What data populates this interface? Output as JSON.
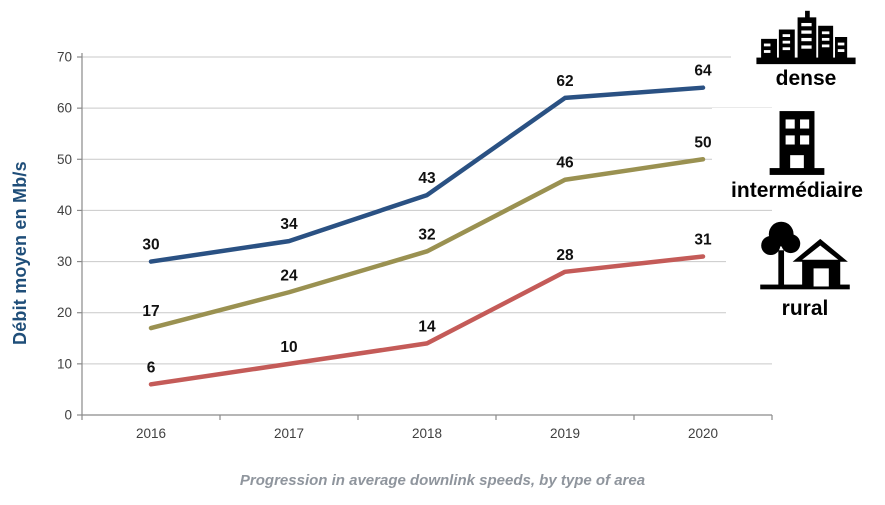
{
  "page": {
    "caption": "Progression in average downlink speeds, by type of area"
  },
  "chart_data": {
    "type": "line",
    "title": "",
    "xlabel": "",
    "ylabel": "Débit moyen en Mb/s",
    "categories": [
      "2016",
      "2017",
      "2018",
      "2019",
      "2020"
    ],
    "yticks": [
      0,
      10,
      20,
      30,
      40,
      50,
      60,
      70
    ],
    "ylim": [
      0,
      70
    ],
    "grid": "horizontal",
    "legend_position": "right",
    "series": [
      {
        "name": "dense",
        "icon": "city-icon",
        "color": "#2A5183",
        "values": [
          30,
          34,
          43,
          62,
          64
        ]
      },
      {
        "name": "intermédiaire",
        "icon": "building-icon",
        "color": "#9A9151",
        "values": [
          17,
          24,
          32,
          46,
          50
        ]
      },
      {
        "name": "rural",
        "icon": "house-icon",
        "color": "#C45B58",
        "values": [
          6,
          10,
          14,
          28,
          31
        ]
      }
    ],
    "style": {
      "grid_color": "#C9C9C9",
      "axis_color": "#8A8A8A",
      "tick_label_color": "#404040",
      "data_label_color": "#111111",
      "ylabel_color": "#1F4E79",
      "caption_color": "#8F959D",
      "icon_color": "#000000",
      "line_width": 4.5
    }
  }
}
